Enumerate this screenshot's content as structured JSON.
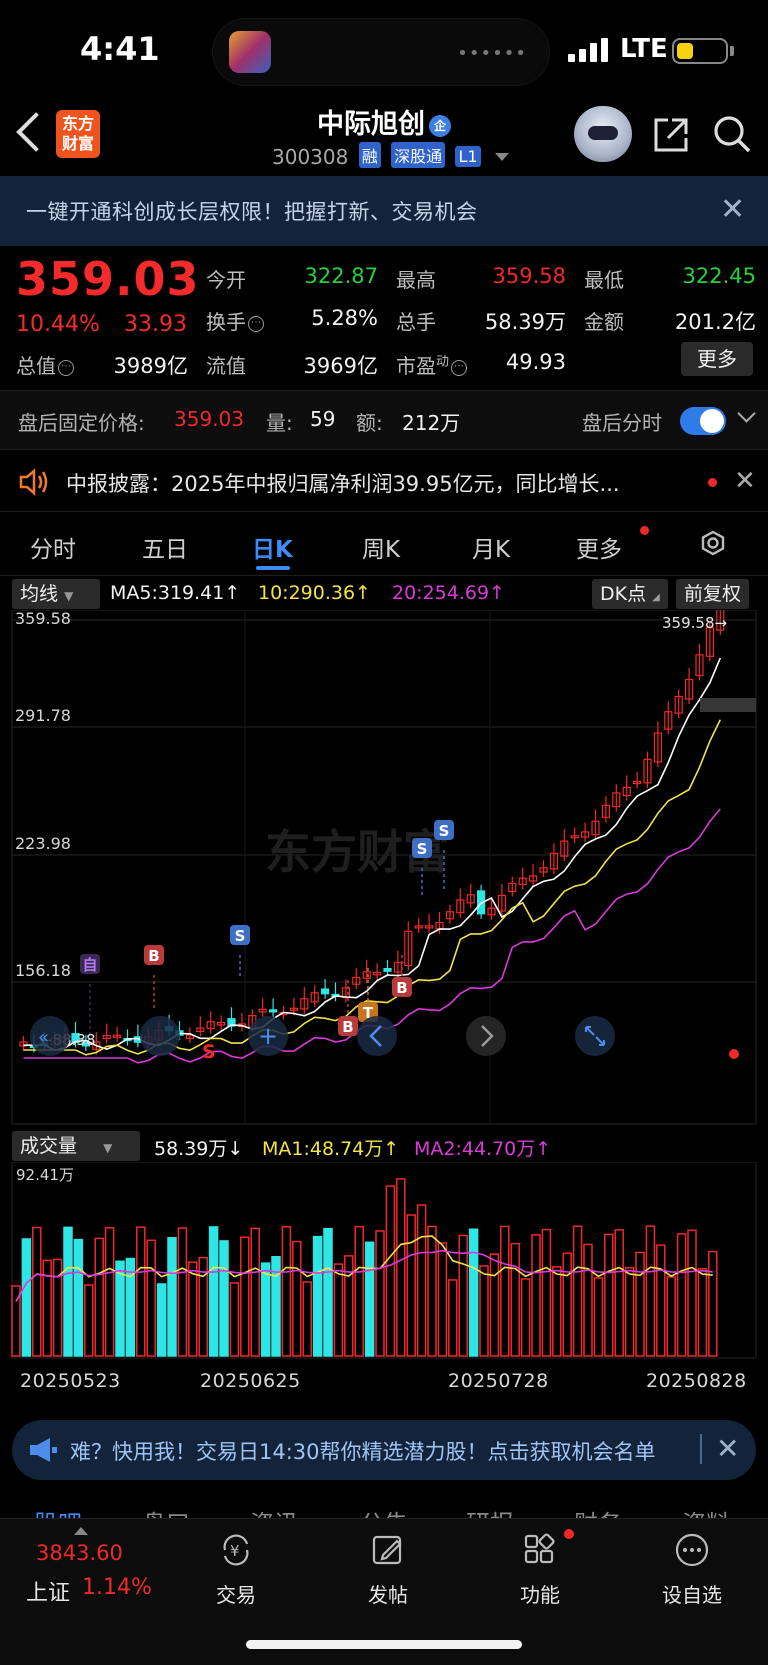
{
  "status_bar": {
    "time": "4:41",
    "network": "LTE",
    "island_dots": "••••••"
  },
  "header": {
    "logo_text": "东方\n财富",
    "stock_name": "中际旭创",
    "name_badge": "企",
    "stock_code": "300308",
    "tags": [
      "融",
      "深股通",
      "L1"
    ]
  },
  "banner": {
    "text": "一键开通科创成长层权限！把握打新、交易机会"
  },
  "quote": {
    "price": "359.03",
    "change_pct": "10.44%",
    "change_amt": "33.93",
    "fields": [
      {
        "label": "今开",
        "value": "322.87",
        "tone": "green"
      },
      {
        "label": "最高",
        "value": "359.58",
        "tone": "red"
      },
      {
        "label": "最低",
        "value": "322.45",
        "tone": "green"
      },
      {
        "label": "换手",
        "value": "5.28%",
        "tone": "white"
      },
      {
        "label": "总手",
        "value": "58.39万",
        "tone": "white"
      },
      {
        "label": "金额",
        "value": "201.2亿",
        "tone": "white"
      },
      {
        "label": "总值",
        "value": "3989亿",
        "tone": "white"
      },
      {
        "label": "流值",
        "value": "3969亿",
        "tone": "white"
      },
      {
        "label": "市盈",
        "label_sup": "动",
        "value": "49.93",
        "tone": "white"
      }
    ],
    "more_label": "更多"
  },
  "after_hours": {
    "fixed_label": "盘后固定价格:",
    "fixed_price": "359.03",
    "vol_label": "量:",
    "vol": "59",
    "amt_label": "额:",
    "amt": "212万",
    "timeshare_label": "盘后分时",
    "toggle_on": true
  },
  "notice": {
    "text": "中报披露：2025年中报归属净利润39.95亿元，同比增长..."
  },
  "tabs": [
    "分时",
    "五日",
    "日K",
    "周K",
    "月K",
    "更多"
  ],
  "active_tab": "日K",
  "ma_toolbar": {
    "indicator": "均线",
    "ma5": "MA5:319.41↑",
    "ma10": "10:290.36↑",
    "ma20": "20:254.69↑",
    "dk_label": "DK点",
    "adjust_label": "前复权"
  },
  "kline": {
    "y_labels": [
      "359.58",
      "291.78",
      "223.98",
      "156.18"
    ],
    "high_marker": "359.58→",
    "low_marker": "←88.38",
    "watermark": "东方财富",
    "signals": [
      "自",
      "B",
      "S",
      "S",
      "S",
      "B",
      "T",
      "B"
    ],
    "s_text": "S"
  },
  "volume": {
    "indicator": "成交量",
    "vol": "58.39万↓",
    "ma1": "MA1:48.74万↑",
    "ma2": "MA2:44.70万↑",
    "max_label": "92.41万"
  },
  "dates": [
    "20250523",
    "20250625",
    "20250728",
    "20250828"
  ],
  "promo": {
    "text": "难？快用我！交易日14:30帮你精选潜力股！点击获取机会名单"
  },
  "sub_tabs": [
    "股吧",
    "盘口",
    "资讯",
    "公告",
    "研报",
    "财务",
    "资料"
  ],
  "bottom_nav": {
    "index_value": "3843.60",
    "index_name": "上证",
    "index_chg": "1.14%",
    "items": [
      "交易",
      "发帖",
      "功能",
      "设自选"
    ]
  },
  "colors": {
    "up": "#f02828",
    "down": "#2ee6e6",
    "ma5": "#ffffff",
    "ma10": "#f2e24a",
    "ma20": "#d93ad9",
    "accent": "#3d8cf5"
  }
}
